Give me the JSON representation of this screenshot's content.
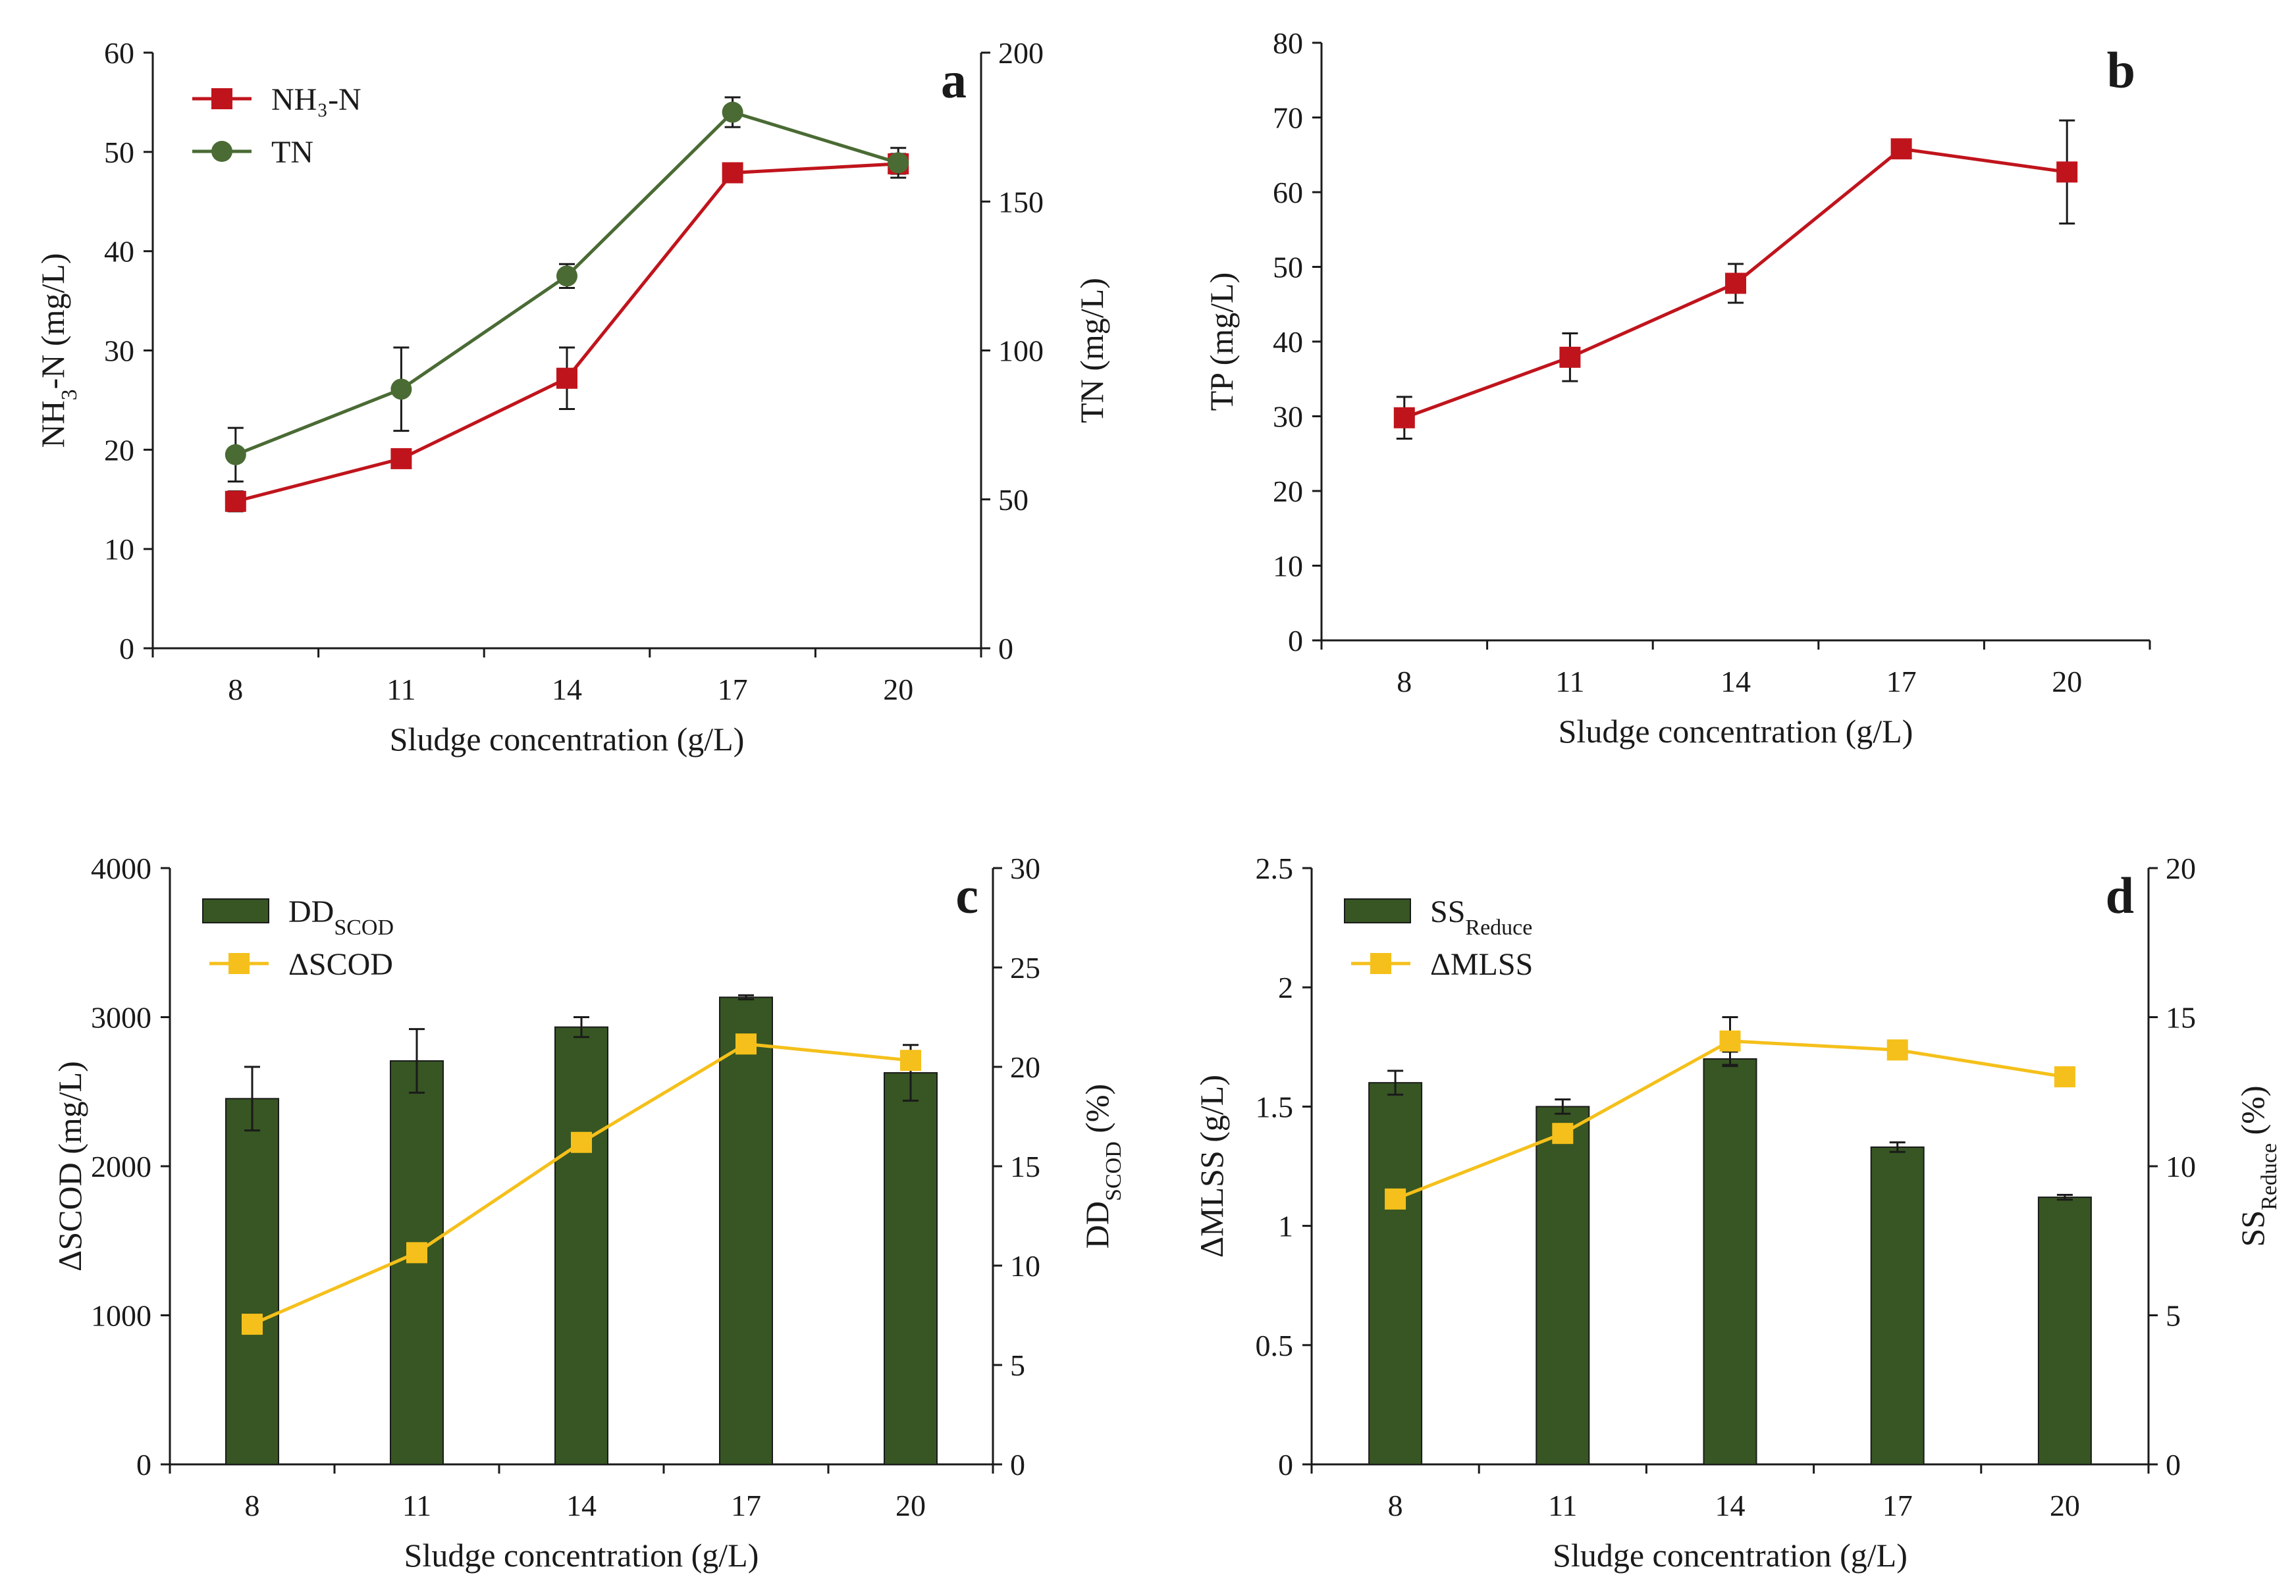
{
  "colors": {
    "red": "#c0141c",
    "green_line": "#4a6b34",
    "bar_fill": "#375623",
    "yellow": "#f5c01b",
    "axis": "#1a1a1a"
  },
  "chart_data": [
    {
      "id": "a",
      "type": "line",
      "panel_label": "a",
      "categories": [
        "8",
        "11",
        "14",
        "17",
        "20"
      ],
      "xlabel": "Sludge concentration (g/L)",
      "left_axis": {
        "label_main": "NH",
        "label_sub": "3",
        "label_rest": "-N (mg/L)",
        "ylim": [
          0,
          60
        ],
        "ticks": [
          "0",
          "10",
          "20",
          "30",
          "40",
          "50",
          "60"
        ]
      },
      "right_axis": {
        "label": "TN (mg/L)",
        "ylim": [
          0,
          200
        ],
        "ticks": [
          "0",
          "50",
          "100",
          "150",
          "200"
        ]
      },
      "legend": [
        "NH₃-N",
        "TN"
      ],
      "legend_position": "top-left",
      "series": [
        {
          "name": "NH₃-N",
          "axis": "left",
          "marker": "square",
          "color": "red",
          "values": [
            14.8,
            19.1,
            27.2,
            47.9,
            48.8
          ],
          "errors": [
            1.0,
            0.6,
            3.1,
            0.6,
            1.0
          ]
        },
        {
          "name": "TN",
          "axis": "right",
          "marker": "circle",
          "color": "green_line",
          "values": [
            65,
            87,
            125,
            180,
            163
          ],
          "errors": [
            9,
            14,
            4,
            5,
            5
          ]
        }
      ]
    },
    {
      "id": "b",
      "type": "line",
      "panel_label": "b",
      "categories": [
        "8",
        "11",
        "14",
        "17",
        "20"
      ],
      "xlabel": "Sludge concentration (g/L)",
      "left_axis": {
        "label": "TP (mg/L)",
        "ylim": [
          0,
          80
        ],
        "ticks": [
          "0",
          "10",
          "20",
          "30",
          "40",
          "50",
          "60",
          "70",
          "80"
        ]
      },
      "series": [
        {
          "name": "TP",
          "axis": "left",
          "marker": "square",
          "color": "red",
          "values": [
            29.8,
            37.9,
            47.8,
            65.8,
            62.7
          ],
          "errors": [
            2.8,
            3.2,
            2.6,
            0.6,
            6.9
          ]
        }
      ]
    },
    {
      "id": "c",
      "type": "bar+line",
      "panel_label": "c",
      "categories": [
        "8",
        "11",
        "14",
        "17",
        "20"
      ],
      "xlabel": "Sludge concentration (g/L)",
      "left_axis": {
        "label": "ΔSCOD (mg/L)",
        "ylim": [
          0,
          4000
        ],
        "ticks": [
          "0",
          "1000",
          "2000",
          "3000",
          "4000"
        ]
      },
      "right_axis": {
        "label_main": "DD",
        "label_sub": "SCOD",
        "label_rest": " (%)",
        "ylim": [
          0,
          30
        ],
        "ticks": [
          "0",
          "5",
          "10",
          "15",
          "20",
          "25",
          "30"
        ]
      },
      "legend": [
        {
          "main": "DD",
          "sub": "SCOD"
        },
        {
          "main": "ΔSCOD",
          "sub": ""
        }
      ],
      "legend_position": "top-left",
      "series": [
        {
          "name": "DD_SCOD",
          "type": "bar",
          "axis": "right",
          "color": "bar_fill",
          "values": [
            18.4,
            20.3,
            22.0,
            23.5,
            19.7
          ],
          "errors": [
            1.6,
            1.6,
            0.5,
            0.1,
            1.4
          ]
        },
        {
          "name": "ΔSCOD",
          "type": "line",
          "axis": "left",
          "marker": "square",
          "color": "yellow",
          "values": [
            940,
            1420,
            2160,
            2820,
            2710
          ],
          "errors": [
            0,
            0,
            0,
            0,
            0
          ]
        }
      ]
    },
    {
      "id": "d",
      "type": "bar+line",
      "panel_label": "d",
      "categories": [
        "8",
        "11",
        "14",
        "17",
        "20"
      ],
      "xlabel": "Sludge concentration (g/L)",
      "left_axis": {
        "label": "ΔMLSS (g/L)",
        "ylim": [
          0,
          2.5
        ],
        "ticks": [
          "0",
          "0.5",
          "1",
          "1.5",
          "2",
          "2.5"
        ]
      },
      "right_axis": {
        "label_main": "SS",
        "label_sub": "Reduce",
        "label_rest": " (%)",
        "ylim": [
          0,
          20
        ],
        "ticks": [
          "0",
          "5",
          "10",
          "15",
          "20"
        ]
      },
      "legend": [
        {
          "main": "SS",
          "sub": "Reduce"
        },
        {
          "main": "ΔMLSS",
          "sub": ""
        }
      ],
      "legend_position": "top-left",
      "series": [
        {
          "name": "SS_Reduce",
          "type": "bar",
          "axis": "left",
          "color": "bar_fill",
          "values": [
            1.6,
            1.5,
            1.7,
            1.33,
            1.12
          ],
          "errors": [
            0.05,
            0.03,
            0.03,
            0.02,
            0.01
          ]
        },
        {
          "name": "ΔMLSS",
          "type": "line",
          "axis": "right",
          "marker": "square",
          "color": "yellow",
          "values": [
            8.9,
            11.1,
            14.2,
            13.9,
            13.0
          ],
          "errors": [
            0,
            0,
            0.8,
            0,
            0
          ]
        }
      ]
    }
  ]
}
